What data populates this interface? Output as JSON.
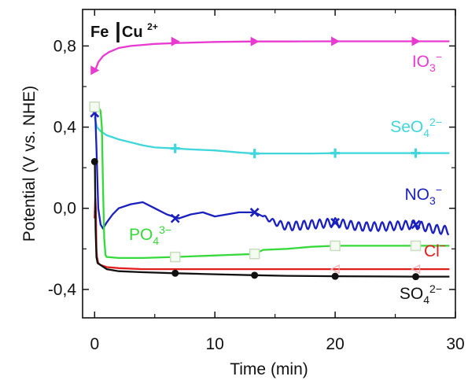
{
  "chart_data": {
    "type": "line",
    "title_main": "Fe",
    "title_ion": "Cu",
    "title_sup": "2+",
    "xlabel": "Time  (min)",
    "ylabel": "Potential  (V  vs. NHE)",
    "xlim": [
      -1,
      30
    ],
    "ylim": [
      -0.54,
      0.98
    ],
    "xticks": [
      {
        "v": 0,
        "label": "0"
      },
      {
        "v": 10,
        "label": "10"
      },
      {
        "v": 20,
        "label": "20"
      },
      {
        "v": 30,
        "label": "30"
      }
    ],
    "yticks": [
      {
        "v": 0.8,
        "label": "0,8"
      },
      {
        "v": 0.4,
        "label": "0,4"
      },
      {
        "v": 0.0,
        "label": "0,0"
      },
      {
        "v": -0.4,
        "label": "-0,4"
      }
    ],
    "series": [
      {
        "key": "io3",
        "base": "IO",
        "sub": "3",
        "sup": "−",
        "color": "#e83ad0",
        "marker": "triangle-right",
        "x": [
          0.05,
          0.3,
          0.7,
          1.2,
          2,
          3,
          4,
          5,
          7,
          10,
          13.3,
          16,
          20,
          25,
          29.5
        ],
        "y": [
          0.68,
          0.72,
          0.75,
          0.77,
          0.79,
          0.8,
          0.805,
          0.81,
          0.815,
          0.82,
          0.822,
          0.822,
          0.823,
          0.823,
          0.823
        ],
        "mx": [
          0,
          6.7,
          13.3,
          20,
          26.7
        ],
        "my": [
          0.68,
          0.822,
          0.822,
          0.823,
          0.823
        ]
      },
      {
        "key": "seo4",
        "base": "SeO",
        "sub": "4",
        "sup": "2−",
        "color": "#3fd6dc",
        "marker": "plus",
        "x": [
          0,
          0.2,
          0.5,
          1,
          2,
          3,
          4,
          5,
          6.7,
          8,
          10,
          12,
          13.3,
          15,
          18,
          20,
          24,
          26.7,
          29.5
        ],
        "y": [
          0.45,
          0.4,
          0.38,
          0.36,
          0.34,
          0.325,
          0.31,
          0.3,
          0.295,
          0.29,
          0.285,
          0.275,
          0.27,
          0.27,
          0.27,
          0.272,
          0.272,
          0.272,
          0.272
        ],
        "mx": [
          6.7,
          13.3,
          20,
          26.7
        ],
        "my": [
          0.295,
          0.27,
          0.272,
          0.272
        ]
      },
      {
        "key": "no3",
        "base": "NO",
        "sub": "3",
        "sup": "−",
        "color": "#1a1fbf",
        "marker": "x",
        "x": [
          0,
          0.05,
          0.15,
          0.3,
          0.5,
          0.7,
          1,
          1.5,
          2,
          3,
          4,
          5,
          6,
          7,
          8,
          9,
          10,
          11,
          12,
          13.3,
          14,
          15,
          16,
          18,
          20,
          22,
          24,
          26.7,
          28,
          29.5
        ],
        "y": [
          0.47,
          0.47,
          0.3,
          0.0,
          -0.08,
          -0.1,
          -0.07,
          -0.03,
          0.0,
          0.02,
          0.03,
          0.0,
          -0.03,
          -0.05,
          -0.03,
          -0.02,
          -0.04,
          -0.03,
          -0.02,
          -0.02,
          -0.04,
          -0.07,
          -0.09,
          -0.08,
          -0.07,
          -0.09,
          -0.09,
          -0.08,
          -0.1,
          -0.11
        ],
        "mx": [
          0,
          6.7,
          13.3,
          20,
          26.7
        ],
        "my": [
          0.47,
          -0.05,
          -0.02,
          -0.07,
          -0.08
        ],
        "wiggle_from": 14,
        "wiggle_amp": 0.022,
        "wiggle_period": 0.65
      },
      {
        "key": "po4",
        "base": "PO",
        "sub": "4",
        "sup": "3−",
        "color": "#35d93a",
        "marker": "square",
        "x": [
          0,
          0.3,
          0.5,
          0.6,
          0.7,
          0.8,
          0.9,
          1.0,
          2,
          4,
          6.7,
          9,
          11,
          13.3,
          14,
          16,
          18,
          20,
          22,
          24,
          26.7,
          29.5
        ],
        "y": [
          0.5,
          0.5,
          0.48,
          0.4,
          0.1,
          -0.15,
          -0.23,
          -0.24,
          -0.245,
          -0.245,
          -0.24,
          -0.235,
          -0.23,
          -0.225,
          -0.205,
          -0.2,
          -0.19,
          -0.185,
          -0.185,
          -0.185,
          -0.185,
          -0.185
        ],
        "mx": [
          0,
          6.7,
          13.3,
          20,
          26.7
        ],
        "my": [
          0.5,
          -0.24,
          -0.225,
          -0.185,
          -0.185
        ]
      },
      {
        "key": "cl",
        "base": "Cl",
        "sub": "",
        "sup": "−",
        "color": "#e01e1e",
        "marker": "triangle-left-open",
        "x": [
          0,
          0.05,
          0.1,
          0.15,
          0.2,
          0.3,
          0.5,
          1,
          2,
          4,
          6.7,
          10,
          13.3,
          16,
          20,
          24,
          26.7,
          29.5
        ],
        "y": [
          -0.05,
          0.05,
          0.0,
          -0.2,
          -0.24,
          -0.27,
          -0.28,
          -0.29,
          -0.295,
          -0.3,
          -0.3,
          -0.3,
          -0.3,
          -0.3,
          -0.3,
          -0.3,
          -0.3,
          -0.3
        ],
        "mx": [
          20,
          26.7
        ],
        "my": [
          -0.3,
          -0.3
        ]
      },
      {
        "key": "so4",
        "base": "SO",
        "sub": "4",
        "sup": "2−",
        "color": "#111111",
        "marker": "circle",
        "x": [
          0,
          0.02,
          0.08,
          0.15,
          0.25,
          0.5,
          1,
          2,
          4,
          6.7,
          10,
          13.3,
          16,
          20,
          24,
          26.7,
          29.5
        ],
        "y": [
          0.23,
          0.23,
          -0.1,
          -0.24,
          -0.27,
          -0.28,
          -0.3,
          -0.31,
          -0.315,
          -0.32,
          -0.325,
          -0.33,
          -0.333,
          -0.335,
          -0.336,
          -0.337,
          -0.337
        ],
        "mx": [
          0,
          6.7,
          13.3,
          20,
          26.7
        ],
        "my": [
          0.23,
          -0.32,
          -0.33,
          -0.335,
          -0.337
        ]
      }
    ]
  }
}
